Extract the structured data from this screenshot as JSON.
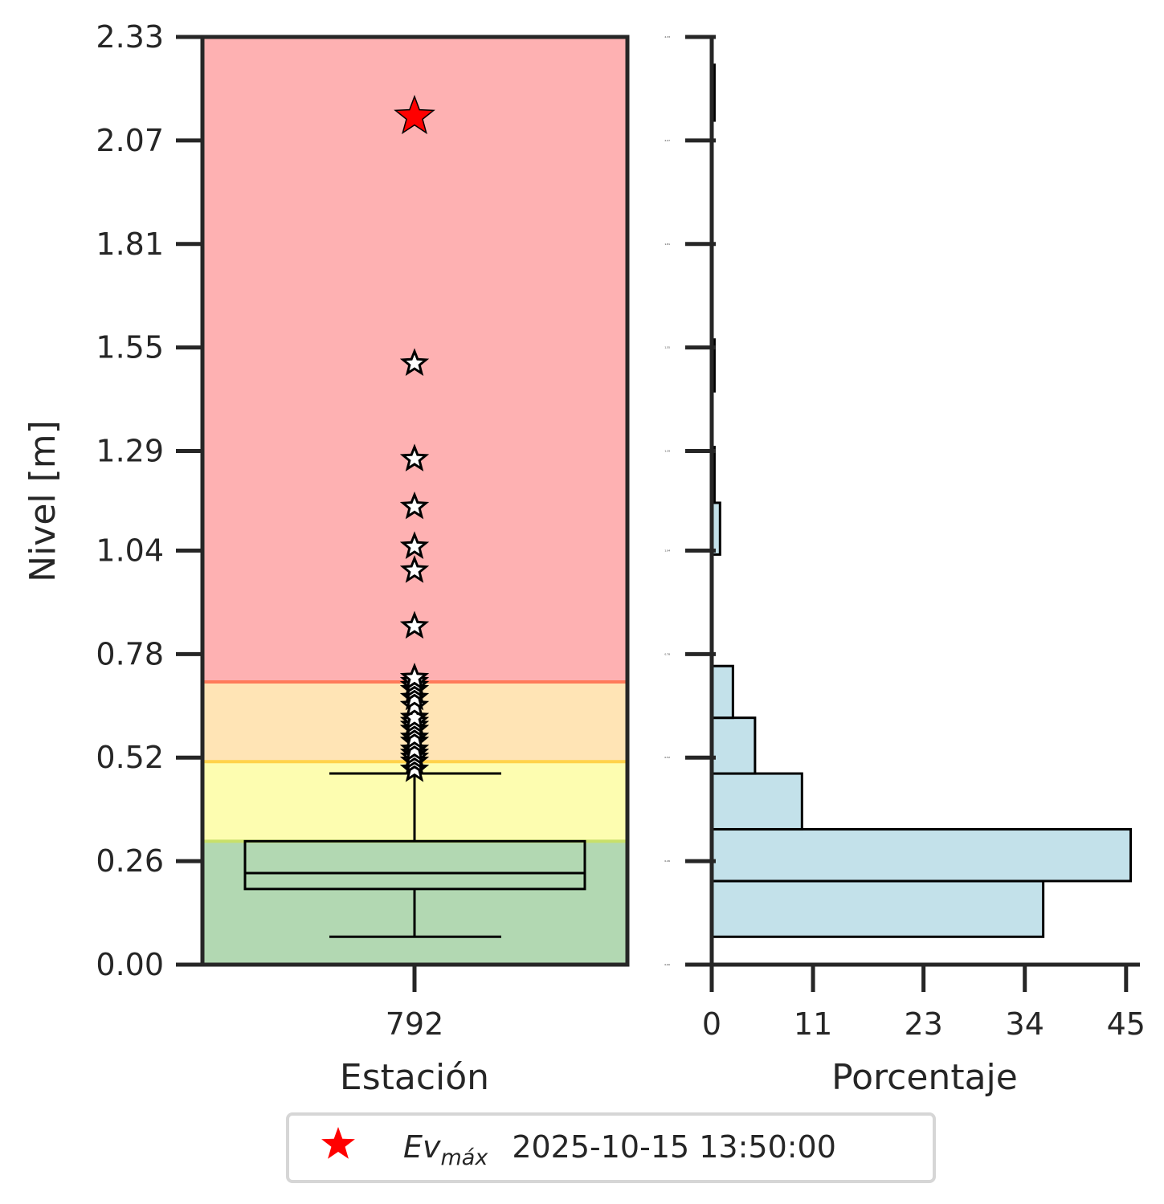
{
  "chart_data": [
    {
      "type": "box",
      "xlabel": "Estación",
      "ylabel": "Nivel [m]",
      "categories": [
        "792"
      ],
      "ylim": [
        0.0,
        2.33
      ],
      "yticks": [
        "0.00",
        "0.26",
        "0.52",
        "0.78",
        "1.04",
        "1.29",
        "1.55",
        "1.81",
        "2.07",
        "2.33"
      ],
      "bands": [
        {
          "from": 0.0,
          "to": 0.31,
          "color": "#b2d8b2"
        },
        {
          "from": 0.31,
          "to": 0.51,
          "color": "#fdfdb0"
        },
        {
          "from": 0.51,
          "to": 0.71,
          "color": "#ffe4b5"
        },
        {
          "from": 0.71,
          "to": 2.33,
          "color": "#feb1b2"
        }
      ],
      "band_lines": [
        {
          "value": 0.31,
          "color": "#c8e06a"
        },
        {
          "value": 0.51,
          "color": "#ffd24a"
        },
        {
          "value": 0.71,
          "color": "#ff7a5a"
        }
      ],
      "box": {
        "whisker_low": 0.07,
        "q1": 0.19,
        "median": 0.23,
        "q3": 0.31,
        "whisker_high": 0.48
      },
      "outliers": [
        0.49,
        0.51,
        0.52,
        0.53,
        0.54,
        0.56,
        0.57,
        0.59,
        0.6,
        0.61,
        0.62,
        0.65,
        0.67,
        0.69,
        0.7,
        0.71,
        0.72,
        0.85,
        0.99,
        1.05,
        1.15,
        1.27,
        1.51
      ],
      "max_event": {
        "value": 2.13,
        "color": "#ff0000"
      }
    },
    {
      "type": "histogram",
      "orientation": "horizontal",
      "xlabel": "Porcentaje",
      "xticks": [
        "0",
        "11",
        "23",
        "34",
        "45"
      ],
      "xlim": [
        0,
        46.5
      ],
      "ylim": [
        0.0,
        2.33
      ],
      "tiny_yticks": [
        "0.00",
        "0.26",
        "0.52",
        "0.78",
        "1.04",
        "1.29",
        "1.55",
        "1.81",
        "2.07",
        "2.33"
      ],
      "bins": [
        {
          "from": 0.07,
          "to": 0.21,
          "value": 36.0
        },
        {
          "from": 0.21,
          "to": 0.34,
          "value": 45.5
        },
        {
          "from": 0.34,
          "to": 0.48,
          "value": 9.8
        },
        {
          "from": 0.48,
          "to": 0.62,
          "value": 4.7
        },
        {
          "from": 0.62,
          "to": 0.75,
          "value": 2.3
        },
        {
          "from": 0.75,
          "to": 0.89,
          "value": 0.0
        },
        {
          "from": 0.89,
          "to": 1.03,
          "value": 0.0
        },
        {
          "from": 1.03,
          "to": 1.16,
          "value": 0.9
        },
        {
          "from": 1.16,
          "to": 1.3,
          "value": 0.3
        },
        {
          "from": 1.3,
          "to": 1.44,
          "value": 0.0
        },
        {
          "from": 1.44,
          "to": 1.57,
          "value": 0.3
        },
        {
          "from": 1.57,
          "to": 1.71,
          "value": 0.0
        },
        {
          "from": 1.71,
          "to": 1.85,
          "value": 0.0
        },
        {
          "from": 1.85,
          "to": 1.98,
          "value": 0.0
        },
        {
          "from": 1.98,
          "to": 2.12,
          "value": 0.0
        },
        {
          "from": 2.12,
          "to": 2.26,
          "value": 0.3
        }
      ],
      "bar_color": "#c3e1ea"
    }
  ],
  "legend": {
    "marker": "star",
    "marker_color": "#ff0000",
    "label_base": "Ev",
    "label_sub": "máx",
    "label_date": "2025-10-15 13:50:00"
  }
}
